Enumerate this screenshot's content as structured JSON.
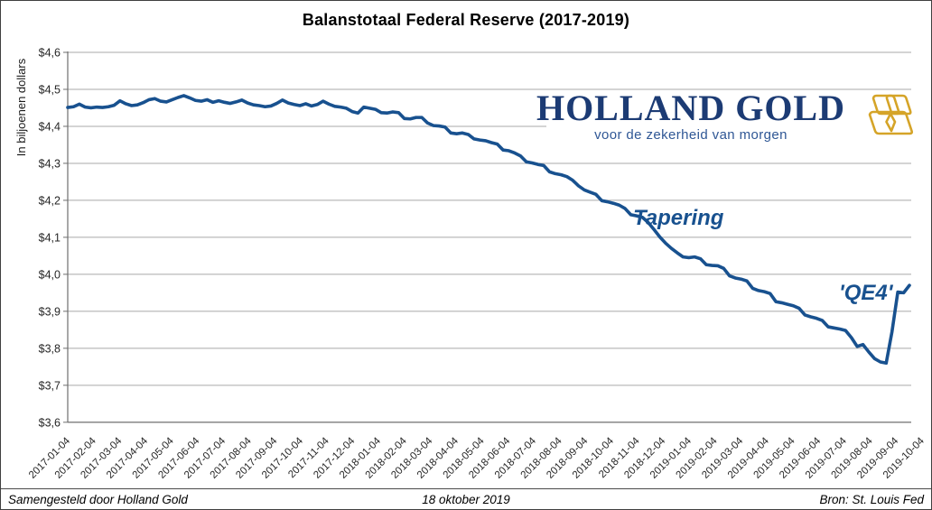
{
  "title": "Balanstotaal Federal Reserve (2017-2019)",
  "y_axis_title": "In biljoenen dollars",
  "annotations": {
    "tapering": "Tapering",
    "qe4": "'QE4'"
  },
  "logo": {
    "name": "HOLLAND GOLD",
    "tagline": "voor de zekerheid van morgen",
    "icon": "gold-bars-icon"
  },
  "footer": {
    "left": "Samengesteld door Holland Gold",
    "center": "18 oktober 2019",
    "right": "Bron: St. Louis Fed"
  },
  "colors": {
    "line": "#18518F",
    "annotation_text": "#18518F",
    "logo_text": "#1C3B74",
    "logo_tagline": "#2F5795",
    "gold": "#D5A428",
    "grid": "#A9A9A9",
    "axis": "#6E6E6E",
    "tick_text": "#262626"
  },
  "chart_data": {
    "type": "line",
    "title": "Balanstotaal Federal Reserve (2017-2019)",
    "xlabel": "",
    "ylabel": "In biljoenen dollars",
    "ylim": [
      3.6,
      4.6
    ],
    "y_tick_step": 0.1,
    "y_tick_labels": [
      "$4,6",
      "$4,5",
      "$4,4",
      "$4,3",
      "$4,2",
      "$4,1",
      "$4,0",
      "$3,9",
      "$3,8",
      "$3,7",
      "$3,6"
    ],
    "x_tick_labels": [
      "2017-01-04",
      "2017-02-04",
      "2017-03-04",
      "2017-04-04",
      "2017-05-04",
      "2017-06-04",
      "2017-07-04",
      "2017-08-04",
      "2017-09-04",
      "2017-10-04",
      "2017-11-04",
      "2017-12-04",
      "2018-01-04",
      "2018-02-04",
      "2018-03-04",
      "2018-04-04",
      "2018-05-04",
      "2018-06-04",
      "2018-07-04",
      "2018-08-04",
      "2018-09-04",
      "2018-10-04",
      "2018-11-04",
      "2018-12-04",
      "2019-01-04",
      "2019-02-04",
      "2019-03-04",
      "2019-04-04",
      "2019-05-04",
      "2019-06-04",
      "2019-07-04",
      "2019-08-04",
      "2019-09-04",
      "2019-10-04"
    ],
    "grid": "horizontal",
    "legend": "none",
    "frequency": "weekly (values estimated from plot, in biljoenen dollars)",
    "x_range": [
      "2017-01-04",
      "2019-10-16"
    ],
    "series": [
      {
        "name": "Balanstotaal Federal Reserve",
        "color": "#18518F",
        "values": [
          4.451,
          4.453,
          4.46,
          4.452,
          4.45,
          4.452,
          4.451,
          4.453,
          4.457,
          4.469,
          4.461,
          4.456,
          4.458,
          4.464,
          4.472,
          4.475,
          4.468,
          4.466,
          4.472,
          4.478,
          4.483,
          4.477,
          4.47,
          4.468,
          4.472,
          4.465,
          4.469,
          4.465,
          4.462,
          4.466,
          4.471,
          4.463,
          4.458,
          4.456,
          4.453,
          4.455,
          4.462,
          4.471,
          4.463,
          4.459,
          4.456,
          4.461,
          4.455,
          4.459,
          4.468,
          4.46,
          4.454,
          4.452,
          4.449,
          4.44,
          4.436,
          4.452,
          4.449,
          4.446,
          4.437,
          4.436,
          4.439,
          4.437,
          4.421,
          4.42,
          4.424,
          4.424,
          4.409,
          4.402,
          4.401,
          4.398,
          4.382,
          4.38,
          4.382,
          4.378,
          4.366,
          4.363,
          4.361,
          4.356,
          4.352,
          4.336,
          4.334,
          4.328,
          4.32,
          4.304,
          4.301,
          4.297,
          4.294,
          4.277,
          4.272,
          4.269,
          4.264,
          4.254,
          4.239,
          4.228,
          4.222,
          4.216,
          4.199,
          4.196,
          4.192,
          4.187,
          4.178,
          4.161,
          4.158,
          4.154,
          4.14,
          4.121,
          4.101,
          4.084,
          4.07,
          4.058,
          4.047,
          4.045,
          4.047,
          4.042,
          4.026,
          4.024,
          4.023,
          4.016,
          3.996,
          3.99,
          3.987,
          3.982,
          3.962,
          3.956,
          3.953,
          3.948,
          3.926,
          3.923,
          3.919,
          3.915,
          3.908,
          3.89,
          3.885,
          3.881,
          3.875,
          3.858,
          3.855,
          3.852,
          3.848,
          3.829,
          3.805,
          3.81,
          3.79,
          3.772,
          3.763,
          3.76,
          3.845,
          3.952,
          3.95,
          3.97
        ]
      }
    ],
    "annotations": [
      {
        "text": "Tapering",
        "near": "2018-12"
      },
      {
        "text": "'QE4'",
        "near": "2019-09"
      }
    ]
  }
}
